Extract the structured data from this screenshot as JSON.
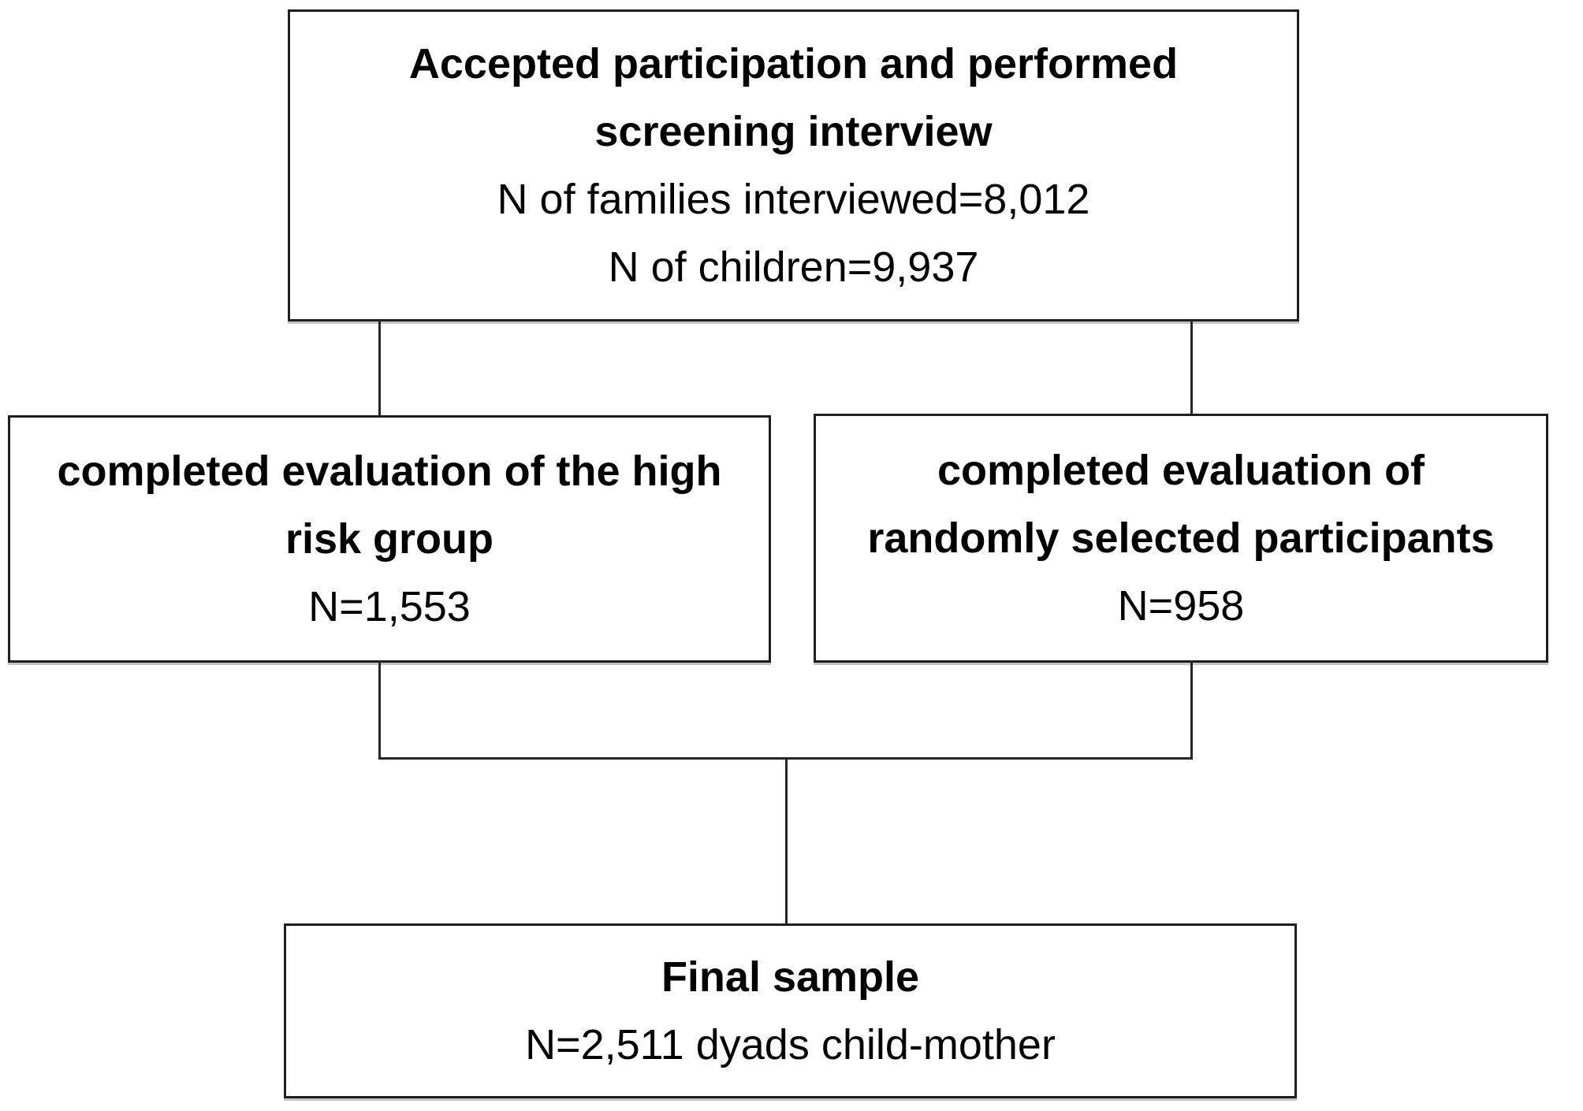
{
  "colors": {
    "background": "#ffffff",
    "box_border": "#1f1f1f",
    "text": "#000000",
    "connector": "#262626"
  },
  "boxes": {
    "screening": {
      "bold_lines": [
        "Accepted participation and performed",
        "screening interview"
      ],
      "plain_lines": [
        "N of families interviewed=8,012",
        "N of children=9,937"
      ]
    },
    "high_risk": {
      "bold_lines": [
        "completed evaluation of the high",
        "risk group"
      ],
      "plain_lines": [
        "N=1,553"
      ]
    },
    "random": {
      "bold_lines": [
        "completed evaluation of",
        "randomly selected participants"
      ],
      "plain_lines": [
        "N=958"
      ]
    },
    "final": {
      "bold_lines": [
        "Final sample"
      ],
      "plain_lines": [
        "N=2,511 dyads child-mother"
      ]
    }
  }
}
